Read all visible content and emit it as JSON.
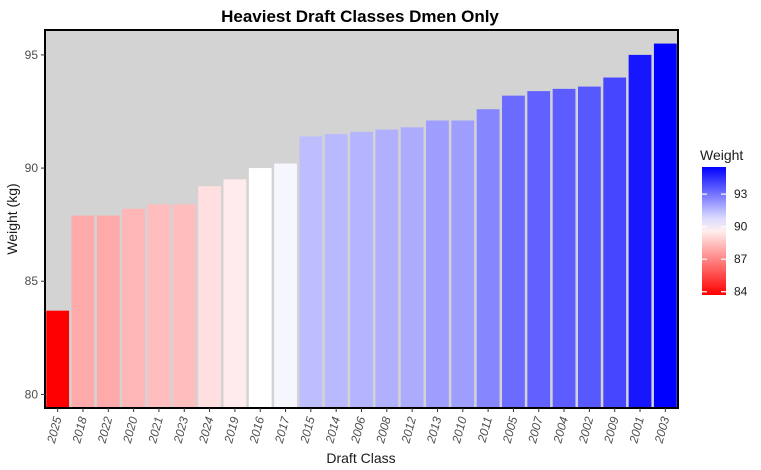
{
  "chart_data": {
    "type": "bar",
    "title": "Heaviest Draft Classes Dmen Only",
    "xlabel": "Draft Class",
    "ylabel": "Weight (kg)",
    "ylim": [
      79.4,
      96.1
    ],
    "yticks": [
      80,
      85,
      90,
      95
    ],
    "grid": false,
    "categories": [
      "2025",
      "2018",
      "2022",
      "2020",
      "2021",
      "2023",
      "2024",
      "2019",
      "2016",
      "2017",
      "2015",
      "2014",
      "2006",
      "2008",
      "2012",
      "2013",
      "2010",
      "2011",
      "2005",
      "2007",
      "2004",
      "2002",
      "2009",
      "2001",
      "2003"
    ],
    "values": [
      83.7,
      87.9,
      87.9,
      88.2,
      88.4,
      88.4,
      89.2,
      89.5,
      90.0,
      90.2,
      91.4,
      91.5,
      91.6,
      91.7,
      91.8,
      92.1,
      92.1,
      92.6,
      93.2,
      93.4,
      93.5,
      93.6,
      94.0,
      95.0,
      95.5
    ],
    "legend": {
      "title": "Weight",
      "ticks": [
        84,
        87,
        90,
        93
      ],
      "placement": "right",
      "gradient": {
        "low": "#ff0000",
        "mid": "#ffffff",
        "high": "#0000ff",
        "midpoint": 90
      }
    },
    "colors": {
      "panel": "#d3d3d3",
      "border": "#000000"
    }
  }
}
